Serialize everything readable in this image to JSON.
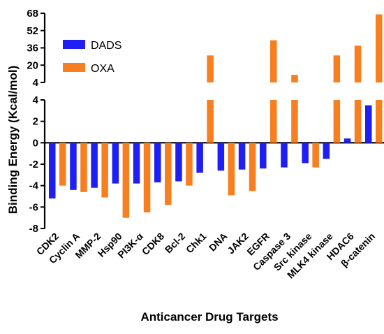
{
  "chart_data": {
    "type": "bar",
    "xlabel": "Anticancer Drug Targets",
    "ylabel": "Binding Energy (Kcal/mol)",
    "categories": [
      "CDK2",
      "Cyclin A",
      "MMP-2",
      "Hsp90",
      "PI3K-α",
      "CDK8",
      "Bcl-2",
      "Chk1",
      "DNA",
      "JAK2",
      "EGFR",
      "Caspase 3",
      "Src kinase",
      "MLK4 kinase",
      "HDAC6",
      "β-catenin"
    ],
    "series": [
      {
        "name": "DADS",
        "color": "#1f1ff5",
        "values": [
          -5.2,
          -4.4,
          -4.2,
          -3.8,
          -3.8,
          -3.7,
          -3.6,
          -2.8,
          -2.6,
          -2.5,
          -2.4,
          -2.3,
          -1.9,
          -1.5,
          0.4,
          3.5
        ]
      },
      {
        "name": "OXA",
        "color": "#f77f1f",
        "values": [
          -4.0,
          -4.6,
          -5.1,
          -7.0,
          -6.5,
          -5.8,
          -4.0,
          29,
          -4.9,
          -4.5,
          43,
          11,
          -2.3,
          29,
          38,
          67
        ]
      }
    ],
    "ylim": [
      -8,
      68
    ],
    "axis_break": {
      "lower": [
        -8,
        4
      ],
      "upper": [
        4,
        68
      ]
    },
    "yticks_lower": [
      "-8",
      "-6",
      "-4",
      "-2",
      "0",
      "2",
      "4"
    ],
    "yticks_upper": [
      "4",
      "20",
      "36",
      "52",
      "68"
    ],
    "legend_position": "top-left",
    "grid": false
  }
}
